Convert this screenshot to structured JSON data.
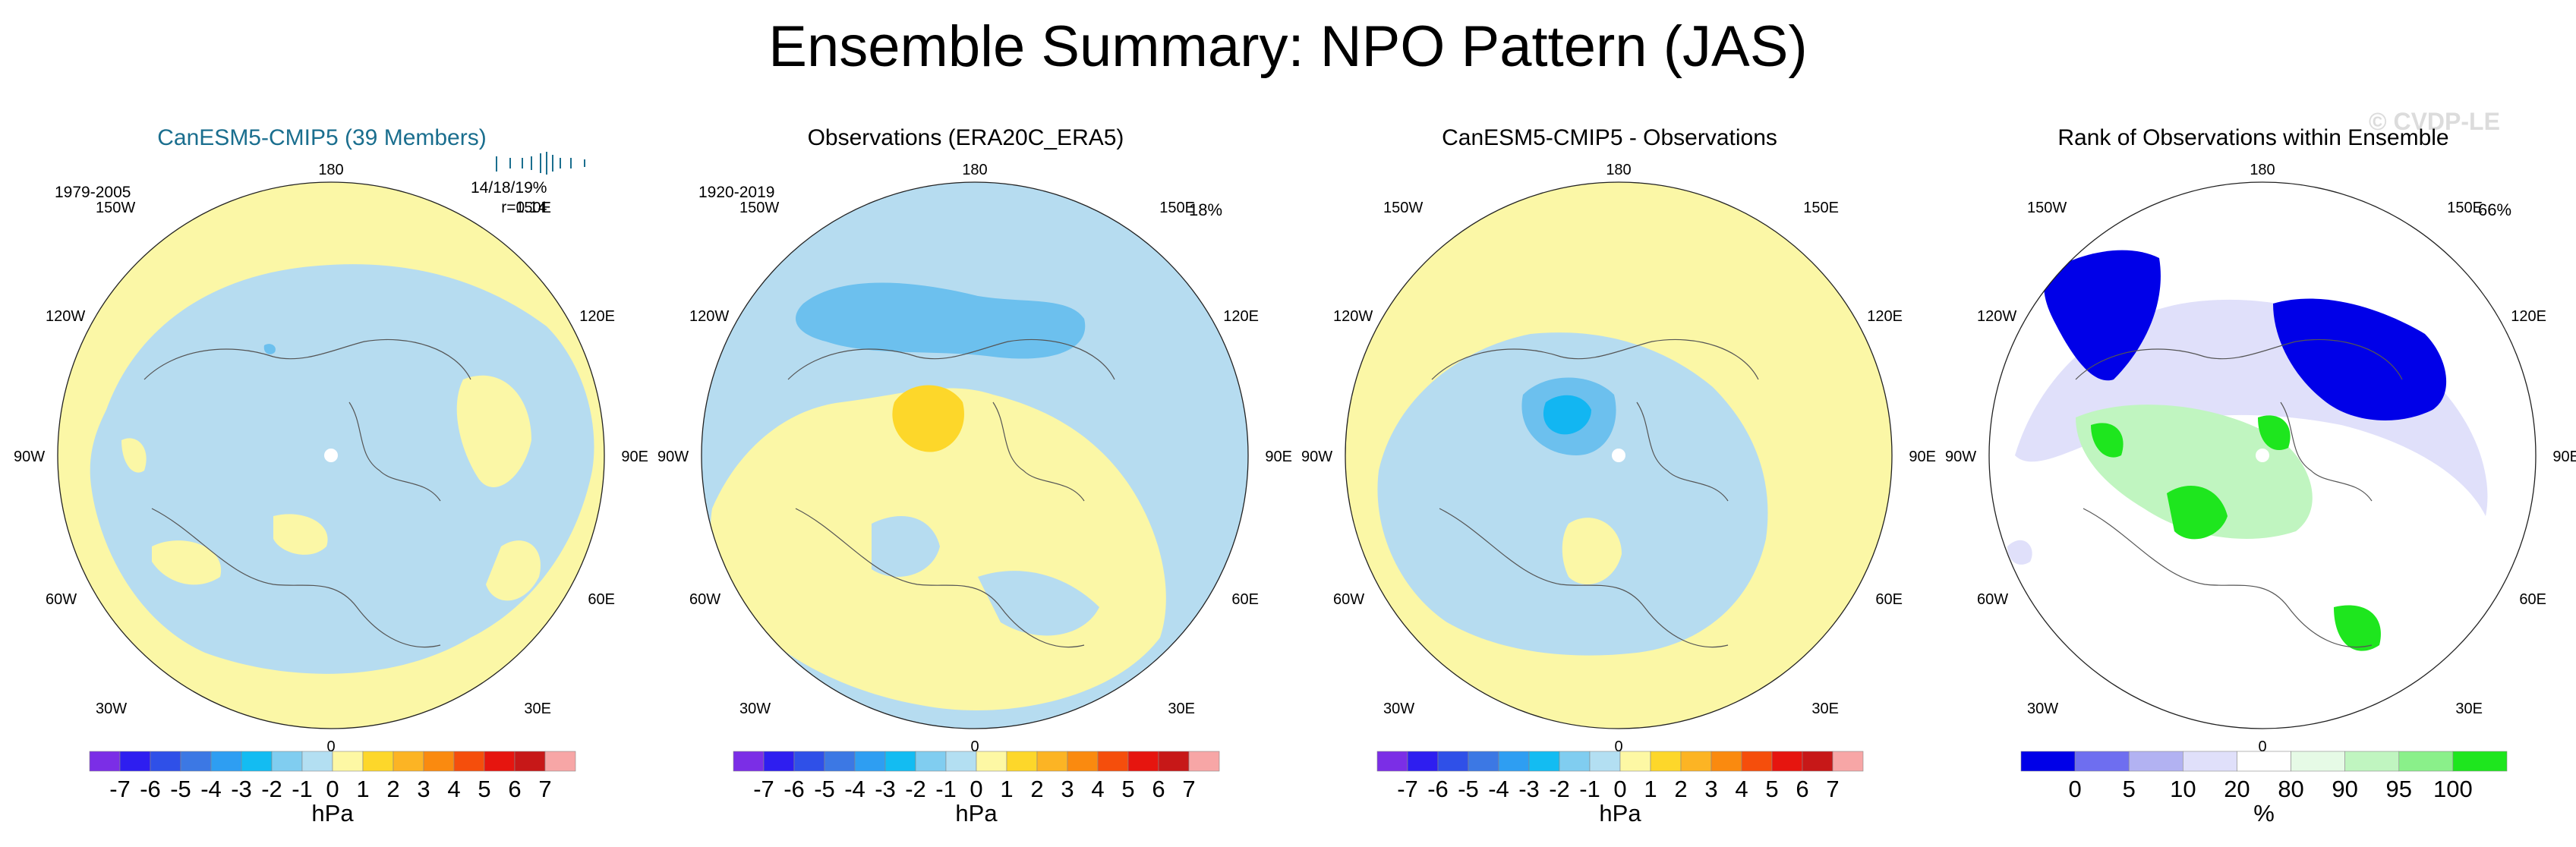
{
  "title": "Ensemble Summary: NPO Pattern (JAS)",
  "watermark": "© CVDP-LE",
  "panels": [
    {
      "title": "CanESM5-CMIP5 (39 Members)",
      "title_color": "#1a6e8e",
      "period": "1979-2005",
      "stats_line1": "14/18/19%",
      "stats_line2": "r=0.14",
      "pct": "",
      "units": "hPa",
      "colorbar": "anom"
    },
    {
      "title": "Observations (ERA20C_ERA5)",
      "title_color": "#000000",
      "period": "1920-2019",
      "pct": "18%",
      "units": "hPa",
      "colorbar": "anom"
    },
    {
      "title": "CanESM5-CMIP5 - Observations",
      "title_color": "#000000",
      "period": "",
      "pct": "",
      "units": "hPa",
      "colorbar": "anom"
    },
    {
      "title": "Rank of Observations within Ensemble",
      "title_color": "#000000",
      "period": "",
      "pct": "66%",
      "units": "%",
      "colorbar": "rank"
    }
  ],
  "lon_labels": {
    "top": "180",
    "bottom": "0",
    "left": "90W",
    "right": "90E",
    "upper_left_outer": "120W",
    "upper_left_inner": "150W",
    "upper_right_inner": "150E",
    "upper_right_outer": "120E",
    "lower_left_outer": "60W",
    "lower_left_inner": "30W",
    "lower_right_outer": "60E",
    "lower_right_inner": "30E"
  },
  "chart_data": [
    {
      "type": "heatmap",
      "title": "CanESM5-CMIP5 (39 Members)",
      "projection": "north polar stereographic",
      "field": "NPO pattern sea level pressure anomaly",
      "units": "hPa",
      "dominant_values": [
        -0.5,
        0.5,
        -1.5
      ],
      "color_levels": [
        -7,
        -6,
        -5,
        -4,
        -3,
        -2,
        -1,
        0,
        1,
        2,
        3,
        4,
        5,
        6,
        7
      ]
    },
    {
      "type": "heatmap",
      "title": "Observations (ERA20C_ERA5)",
      "projection": "north polar stereographic",
      "field": "NPO pattern sea level pressure anomaly",
      "units": "hPa",
      "dominant_values": [
        -0.5,
        0.5,
        1.5,
        -1.5
      ],
      "color_levels": [
        -7,
        -6,
        -5,
        -4,
        -3,
        -2,
        -1,
        0,
        1,
        2,
        3,
        4,
        5,
        6,
        7
      ]
    },
    {
      "type": "heatmap",
      "title": "CanESM5-CMIP5 - Observations",
      "projection": "north polar stereographic",
      "field": "difference (model minus observations)",
      "units": "hPa",
      "dominant_values": [
        0.5,
        -0.5,
        -1.5,
        -2.5
      ],
      "color_levels": [
        -7,
        -6,
        -5,
        -4,
        -3,
        -2,
        -1,
        0,
        1,
        2,
        3,
        4,
        5,
        6,
        7
      ]
    },
    {
      "type": "heatmap",
      "title": "Rank of Observations within Ensemble",
      "projection": "north polar stereographic",
      "field": "percentile rank",
      "units": "%",
      "color_levels": [
        0,
        5,
        10,
        20,
        80,
        90,
        95,
        100
      ]
    }
  ],
  "colorbars": {
    "anom": {
      "colors": [
        "#7b2ee6",
        "#2e1ef0",
        "#2f50e8",
        "#3c78e4",
        "#2e9ef2",
        "#13bcf2",
        "#80cdf0",
        "#b3dff2",
        "#fdf8a4",
        "#fdd72a",
        "#fcb424",
        "#fa8a0f",
        "#f54e0c",
        "#e6150f",
        "#c71818",
        "#f7a6a6"
      ],
      "labels": [
        "-7",
        "-6",
        "-5",
        "-4",
        "-3",
        "-2",
        "-1",
        "0",
        "1",
        "2",
        "3",
        "4",
        "5",
        "6",
        "7"
      ]
    },
    "rank": {
      "colors": [
        "#0000e8",
        "#6e6ef0",
        "#b2b2f2",
        "#e0e0fa",
        "#ffffff",
        "#e6fae6",
        "#c0f5c0",
        "#8af08a",
        "#1ee61e"
      ],
      "labels": [
        "0",
        "5",
        "10",
        "20",
        "80",
        "90",
        "95",
        "100"
      ]
    }
  },
  "colors": {
    "light_blue": "#b6dcf0",
    "light_yellow": "#fbf7a6",
    "mid_blue": "#6cc0ee",
    "deep_blue": "#12b6f2",
    "yellow": "#fdd72a",
    "rank_blue": "#0000e8",
    "rank_green": "#1ee61e"
  }
}
